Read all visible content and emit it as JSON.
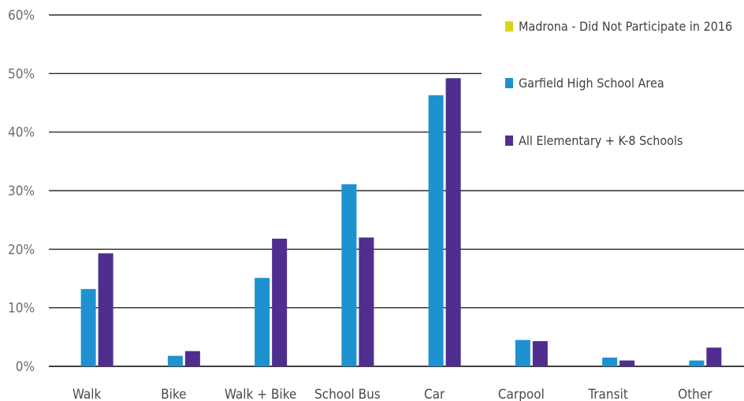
{
  "chart_data": {
    "type": "bar",
    "categories": [
      "Walk",
      "Bike",
      "Walk + Bike",
      "School Bus",
      "Car",
      "Carpool",
      "Transit",
      "Other"
    ],
    "series": [
      {
        "name": "Madrona - Did Not Participate  in 2016",
        "color": "#d9d51c",
        "values": [
          0,
          0,
          0,
          0,
          0,
          0,
          0,
          0
        ]
      },
      {
        "name": "Garfield High School Area",
        "color": "#1e92d0",
        "values": [
          13.2,
          1.8,
          15.1,
          31.1,
          46.3,
          4.5,
          1.5,
          1.0
        ]
      },
      {
        "name": "All Elementary + K-8 Schools",
        "color": "#4f2e8f",
        "values": [
          19.3,
          2.6,
          21.8,
          22.0,
          49.2,
          4.3,
          1.0,
          3.2
        ]
      }
    ],
    "yticks": [
      "0%",
      "10%",
      "20%",
      "30%",
      "40%",
      "50%",
      "60%"
    ],
    "ylim": [
      0,
      60
    ],
    "title": "",
    "xlabel": "",
    "ylabel": "",
    "grid": true,
    "legend": "top-right"
  }
}
